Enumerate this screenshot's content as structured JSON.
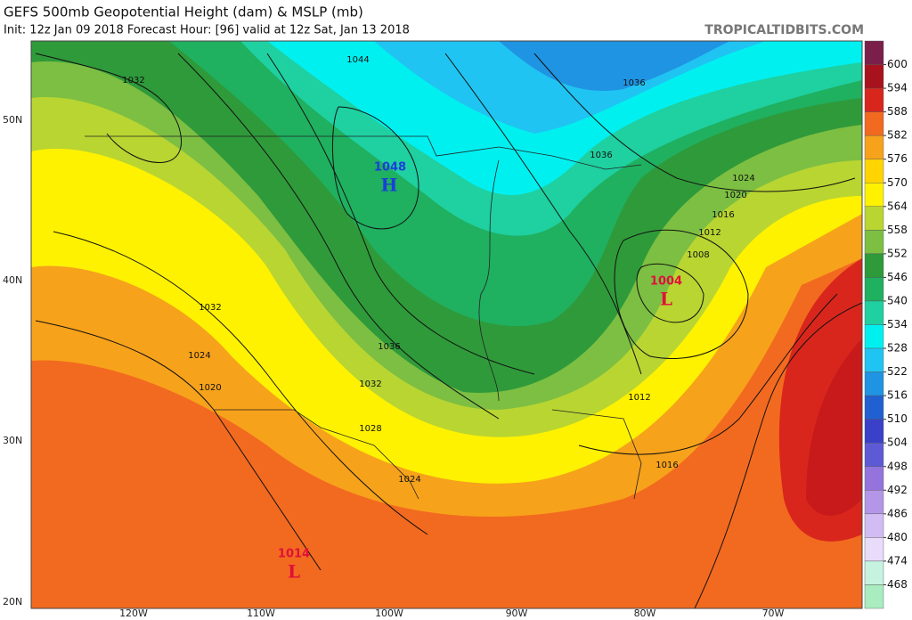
{
  "header": {
    "title": "GEFS 500mb Geopotential Height (dam) & MSLP (mb)",
    "subtitle": "Init: 12z Jan 09 2018   Forecast Hour: [96]   valid at 12z Sat, Jan 13 2018",
    "watermark": "TROPICALTIDBITS.COM"
  },
  "colorbar": {
    "levels": [
      600,
      594,
      588,
      582,
      576,
      570,
      564,
      558,
      552,
      546,
      540,
      534,
      528,
      522,
      516,
      510,
      504,
      498,
      492,
      486,
      480,
      474,
      468
    ],
    "colors": [
      "#7a1f4a",
      "#a8121c",
      "#d9261c",
      "#f26a1f",
      "#f7a21b",
      "#ffd400",
      "#fff200",
      "#b9d531",
      "#7cbf42",
      "#2f9a3a",
      "#1fb060",
      "#1fd0a0",
      "#00f0f0",
      "#20c4f2",
      "#1f94e2",
      "#2060d0",
      "#3b40c8",
      "#5e5ad6",
      "#9474dc",
      "#b496e8",
      "#d2bcf4",
      "#e8dcfa",
      "#c6f2e0",
      "#a8ecc0"
    ]
  },
  "axes": {
    "lat_labels": [
      "50N",
      "40N",
      "30N",
      "20N"
    ],
    "lon_labels": [
      "120W",
      "110W",
      "100W",
      "90W",
      "80W",
      "70W"
    ]
  },
  "map": {
    "contour_labels": [
      "1032",
      "1044",
      "1036",
      "1036",
      "1024",
      "1020",
      "1016",
      "1012",
      "1008",
      "1032",
      "1024",
      "1020",
      "1036",
      "1032",
      "1028",
      "1024",
      "1012",
      "1016"
    ],
    "high": {
      "pressure": "1048",
      "symbol": "H"
    },
    "lows": [
      {
        "pressure": "1004",
        "symbol": "L"
      },
      {
        "pressure": "1014",
        "symbol": "L"
      }
    ]
  }
}
